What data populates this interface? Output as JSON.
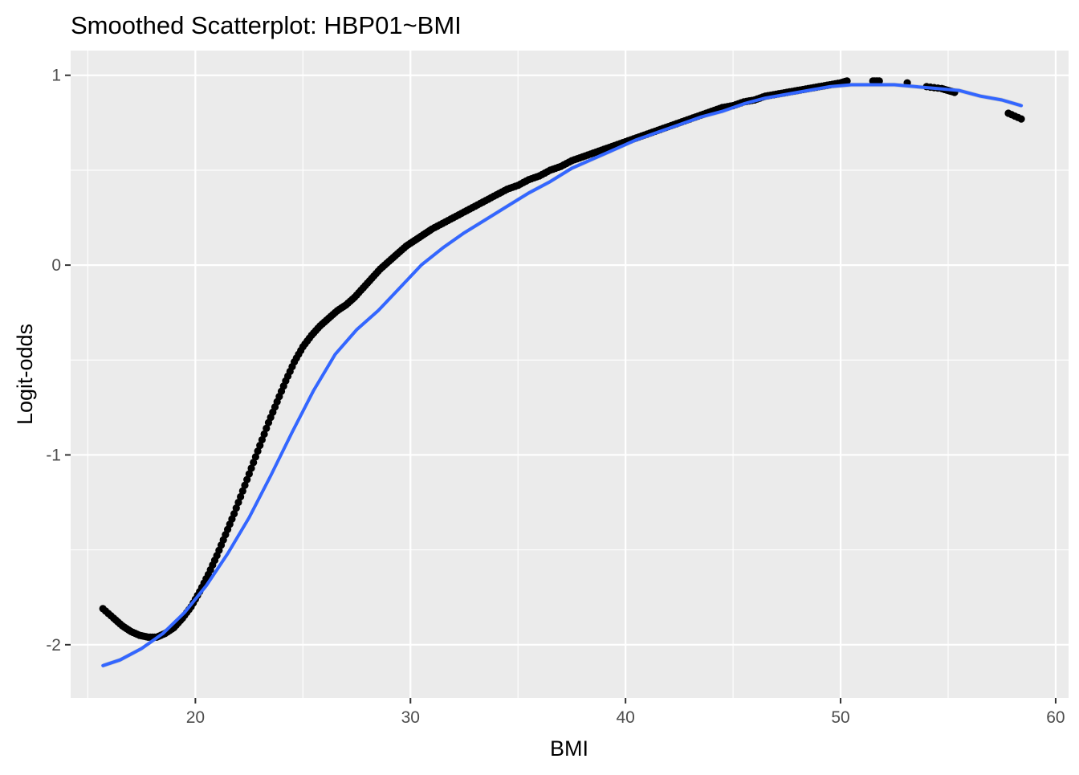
{
  "chart_data": {
    "type": "scatter",
    "title": "Smoothed Scatterplot: HBP01~BMI",
    "xlabel": "BMI",
    "ylabel": "Logit-odds",
    "xlim": [
      14.2,
      60.6
    ],
    "ylim": [
      -2.28,
      1.13
    ],
    "x_ticks": [
      20,
      30,
      40,
      50,
      60
    ],
    "y_ticks": [
      -2,
      -1,
      0,
      1
    ],
    "x_tick_labels": [
      "20",
      "30",
      "40",
      "50",
      "60"
    ],
    "y_tick_labels": [
      "-2",
      "-1",
      "0",
      "1"
    ],
    "grid": true,
    "background": "#ebebeb",
    "grid_color": "#ffffff",
    "point_color": "#000000",
    "smooth_color": "#3366ff",
    "band_color": "#c8c8c8",
    "points": {
      "x": [
        15.7,
        16.2,
        16.6,
        17.0,
        17.4,
        17.8,
        18.2,
        18.6,
        19.0,
        19.4,
        19.8,
        20.2,
        20.6,
        21.0,
        21.4,
        21.8,
        22.2,
        22.6,
        23.0,
        23.4,
        23.8,
        24.2,
        24.6,
        25.0,
        25.4,
        25.8,
        26.2,
        26.6,
        27.0,
        27.4,
        27.8,
        28.2,
        28.6,
        29.0,
        29.4,
        29.8,
        30.2,
        30.6,
        31.0,
        31.5,
        32.0,
        32.5,
        33.0,
        33.5,
        34.0,
        34.5,
        35.0,
        35.5,
        36.0,
        36.5,
        37.0,
        37.5,
        38.0,
        38.5,
        39.0,
        39.5,
        40.0,
        40.5,
        41.0,
        41.5,
        42.0,
        42.5,
        43.0,
        43.5,
        44.0,
        44.5,
        45.0,
        45.5,
        46.0,
        46.5,
        47.0,
        47.5,
        48.0,
        48.5,
        49.0,
        49.5,
        50.0,
        50.3,
        51.5,
        51.8,
        53.1,
        54.0,
        54.7,
        55.0,
        55.3,
        57.8,
        58.4
      ],
      "y": [
        -1.81,
        -1.86,
        -1.9,
        -1.93,
        -1.95,
        -1.96,
        -1.96,
        -1.94,
        -1.91,
        -1.86,
        -1.8,
        -1.72,
        -1.63,
        -1.53,
        -1.42,
        -1.31,
        -1.19,
        -1.07,
        -0.95,
        -0.83,
        -0.72,
        -0.61,
        -0.51,
        -0.43,
        -0.37,
        -0.32,
        -0.28,
        -0.24,
        -0.21,
        -0.17,
        -0.12,
        -0.07,
        -0.02,
        0.02,
        0.06,
        0.1,
        0.13,
        0.16,
        0.19,
        0.22,
        0.25,
        0.28,
        0.31,
        0.34,
        0.37,
        0.4,
        0.42,
        0.45,
        0.47,
        0.5,
        0.52,
        0.55,
        0.57,
        0.59,
        0.61,
        0.63,
        0.65,
        0.67,
        0.69,
        0.71,
        0.73,
        0.75,
        0.77,
        0.79,
        0.81,
        0.83,
        0.84,
        0.86,
        0.87,
        0.89,
        0.9,
        0.91,
        0.92,
        0.93,
        0.94,
        0.95,
        0.96,
        0.97,
        0.97,
        0.97,
        0.96,
        0.94,
        0.93,
        0.92,
        0.91,
        0.8,
        0.77
      ]
    },
    "smooth": {
      "x": [
        15.7,
        16.5,
        17.5,
        18.5,
        19.5,
        20.5,
        21.5,
        22.5,
        23.5,
        24.5,
        25.5,
        26.5,
        27.5,
        28.5,
        29.5,
        30.5,
        31.5,
        32.5,
        33.5,
        34.5,
        35.5,
        36.5,
        37.5,
        38.5,
        39.5,
        40.5,
        41.5,
        42.5,
        43.5,
        44.5,
        45.5,
        46.5,
        47.5,
        48.5,
        49.5,
        50.5,
        51.5,
        52.5,
        53.5,
        54.5,
        55.5,
        56.5,
        57.5,
        58.4
      ],
      "y": [
        -2.11,
        -2.08,
        -2.02,
        -1.94,
        -1.83,
        -1.69,
        -1.52,
        -1.33,
        -1.11,
        -0.88,
        -0.66,
        -0.47,
        -0.34,
        -0.24,
        -0.12,
        0.0,
        0.09,
        0.17,
        0.24,
        0.31,
        0.38,
        0.44,
        0.51,
        0.56,
        0.61,
        0.66,
        0.7,
        0.74,
        0.78,
        0.81,
        0.85,
        0.88,
        0.9,
        0.92,
        0.94,
        0.95,
        0.95,
        0.95,
        0.94,
        0.93,
        0.92,
        0.89,
        0.87,
        0.84
      ]
    }
  }
}
